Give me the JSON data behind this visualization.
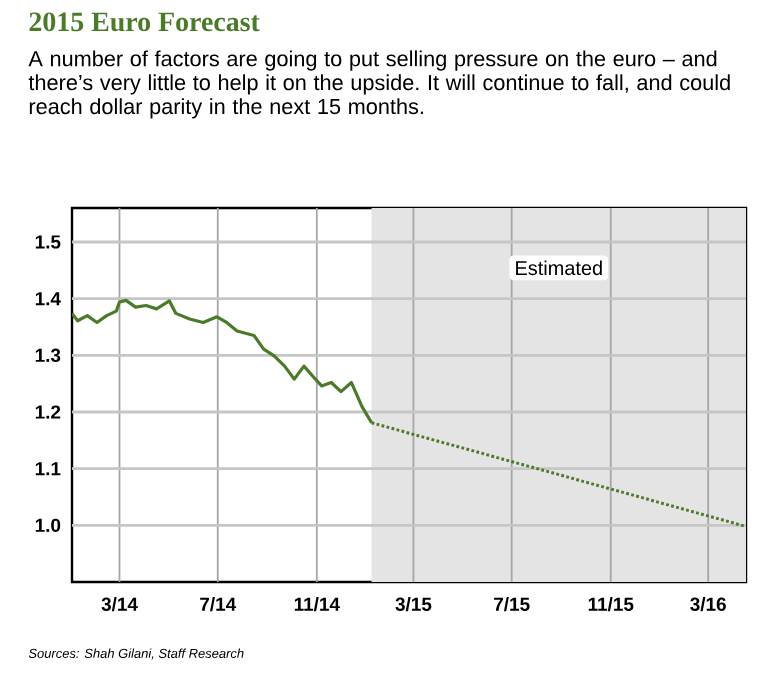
{
  "chart_data": {
    "type": "line",
    "title": "2015 Euro Forecast",
    "subtitle": "A number of factors are going to put selling pressure on the euro – and there’s very little to help it on the upside. It will continue to fall, and could reach dollar parity in the next 15 months.",
    "annotations": [
      "Sources: Shah Gilani, Staff Research"
    ],
    "xlim": [
      "2014-01-01",
      "2016-04-17"
    ],
    "xticks": [
      {
        "value": "2014-03-01",
        "label": "3/14"
      },
      {
        "value": "2014-07-01",
        "label": "7/14"
      },
      {
        "value": "2014-11-01",
        "label": "11/14"
      },
      {
        "value": "2015-03-01",
        "label": "3/15"
      },
      {
        "value": "2015-07-01",
        "label": "7/15"
      },
      {
        "value": "2015-11-01",
        "label": "11/15"
      },
      {
        "value": "2016-03-01",
        "label": "3/16"
      }
    ],
    "ylim": [
      0.9,
      1.56
    ],
    "yticks": [
      {
        "value": 1.0,
        "label": "1.0"
      },
      1.1,
      1.2,
      1.3,
      1.4,
      1.5
    ],
    "grid": true,
    "bands": [
      {
        "axis": "x",
        "from": "2015-01-08",
        "to": "2016-04-17",
        "label": "Estimated",
        "color": "#e4e4e4"
      }
    ],
    "series": [
      {
        "color": "#4a7a2a",
        "line_style": "solid",
        "x": [
          "2014-01-01",
          "2014-01-08",
          "2014-01-20",
          "2014-02-01",
          "2014-02-13",
          "2014-02-25",
          "2014-03-01",
          "2014-03-09",
          "2014-03-21",
          "2014-04-03",
          "2014-04-16",
          "2014-05-02",
          "2014-05-10",
          "2014-05-27",
          "2014-06-13",
          "2014-06-30",
          "2014-07-12",
          "2014-07-25",
          "2014-08-15",
          "2014-08-27",
          "2014-09-09",
          "2014-09-22",
          "2014-10-04",
          "2014-10-16",
          "2014-10-29",
          "2014-11-07",
          "2014-11-19",
          "2014-12-01",
          "2014-12-14",
          "2014-12-27",
          "2015-01-08"
        ],
        "values": [
          1.374,
          1.361,
          1.37,
          1.358,
          1.37,
          1.378,
          1.394,
          1.397,
          1.385,
          1.388,
          1.382,
          1.396,
          1.374,
          1.364,
          1.358,
          1.368,
          1.358,
          1.343,
          1.335,
          1.311,
          1.299,
          1.281,
          1.258,
          1.281,
          1.26,
          1.246,
          1.252,
          1.236,
          1.252,
          1.21,
          1.181
        ]
      },
      {
        "color": "#4a7a2a",
        "line_style": "dotted",
        "x": [
          "2015-01-08",
          "2016-04-17"
        ],
        "values": [
          1.181,
          0.998
        ]
      }
    ]
  }
}
